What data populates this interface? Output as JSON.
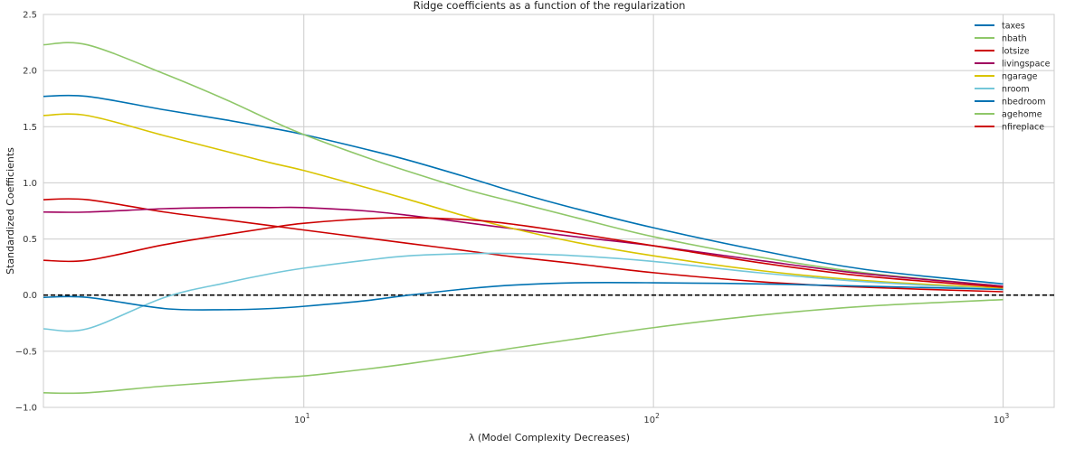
{
  "chart_data": {
    "type": "line",
    "title": "Ridge coefficients as a function of the regularization",
    "xlabel": "λ (Model Complexity Decreases)",
    "ylabel": "Standardized Coefficients",
    "xscale": "log",
    "xlim": [
      1.8,
      1400
    ],
    "ylim": [
      -1.0,
      2.5
    ],
    "yticks": [
      -1.0,
      -0.5,
      0.0,
      0.5,
      1.0,
      1.5,
      2.0,
      2.5
    ],
    "ytick_labels": [
      "−1.0",
      "−0.5",
      "0.0",
      "0.5",
      "1.0",
      "1.5",
      "2.0",
      "2.5"
    ],
    "xticks": [
      10,
      100,
      1000
    ],
    "xtick_labels": [
      {
        "base": "10",
        "exp": "1"
      },
      {
        "base": "10",
        "exp": "2"
      },
      {
        "base": "10",
        "exp": "3"
      }
    ],
    "grid": true,
    "legend_position": "top-right",
    "reference_line": {
      "y": 0,
      "style": "dashed",
      "color": "#000000"
    },
    "x": [
      1.8,
      2.4,
      4,
      6,
      8,
      10,
      15,
      20,
      30,
      40,
      60,
      100,
      200,
      400,
      1000
    ],
    "series": [
      {
        "name": "taxes",
        "color": "#0072B2",
        "values": [
          1.77,
          1.77,
          1.65,
          1.56,
          1.49,
          1.43,
          1.3,
          1.2,
          1.04,
          0.92,
          0.77,
          0.6,
          0.4,
          0.23,
          0.1
        ]
      },
      {
        "name": "nbath",
        "color": "#8FC769",
        "values": [
          2.23,
          2.23,
          1.97,
          1.74,
          1.56,
          1.43,
          1.23,
          1.1,
          0.93,
          0.83,
          0.69,
          0.52,
          0.34,
          0.2,
          0.08
        ]
      },
      {
        "name": "lotsize",
        "color": "#CC0000",
        "values": [
          0.85,
          0.85,
          0.74,
          0.67,
          0.62,
          0.58,
          0.51,
          0.46,
          0.39,
          0.34,
          0.28,
          0.2,
          0.12,
          0.07,
          0.03
        ]
      },
      {
        "name": "livingspace",
        "color": "#A0005F",
        "values": [
          0.74,
          0.74,
          0.77,
          0.78,
          0.78,
          0.78,
          0.75,
          0.71,
          0.64,
          0.59,
          0.52,
          0.44,
          0.31,
          0.19,
          0.08
        ]
      },
      {
        "name": "ngarage",
        "color": "#D9C400",
        "values": [
          1.6,
          1.6,
          1.42,
          1.28,
          1.18,
          1.11,
          0.96,
          0.85,
          0.69,
          0.59,
          0.47,
          0.35,
          0.22,
          0.13,
          0.06
        ]
      },
      {
        "name": "nroom",
        "color": "#74C7D9",
        "values": [
          -0.3,
          -0.3,
          -0.02,
          0.11,
          0.19,
          0.24,
          0.31,
          0.35,
          0.37,
          0.37,
          0.35,
          0.3,
          0.2,
          0.12,
          0.05
        ]
      },
      {
        "name": "nbedroom",
        "color": "#0072B2",
        "values": [
          -0.02,
          -0.02,
          -0.12,
          -0.13,
          -0.12,
          -0.1,
          -0.05,
          0.0,
          0.06,
          0.09,
          0.11,
          0.11,
          0.1,
          0.08,
          0.05
        ]
      },
      {
        "name": "agehome",
        "color": "#8FC769",
        "values": [
          -0.87,
          -0.87,
          -0.81,
          -0.77,
          -0.74,
          -0.72,
          -0.66,
          -0.61,
          -0.53,
          -0.47,
          -0.39,
          -0.29,
          -0.18,
          -0.1,
          -0.04
        ]
      },
      {
        "name": "nfireplace",
        "color": "#CC0000",
        "values": [
          0.31,
          0.31,
          0.45,
          0.54,
          0.6,
          0.64,
          0.68,
          0.69,
          0.67,
          0.63,
          0.55,
          0.44,
          0.29,
          0.17,
          0.07
        ]
      }
    ]
  }
}
